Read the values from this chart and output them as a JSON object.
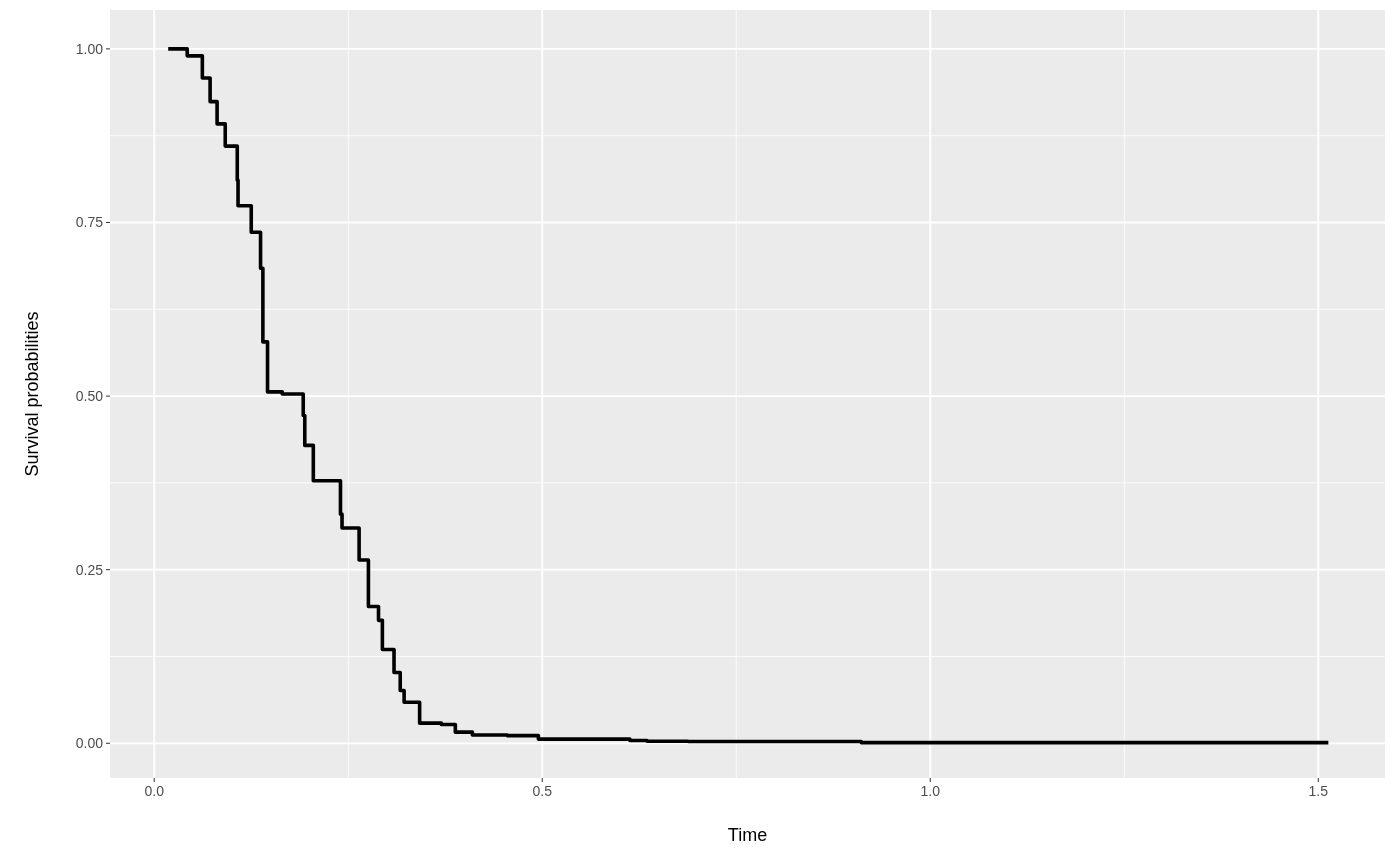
{
  "chart_data": {
    "type": "step",
    "xlabel": "Time",
    "ylabel": "Survival probabilities",
    "x": [
      0.018,
      0.0425,
      0.062,
      0.072,
      0.081,
      0.0915,
      0.107,
      0.108,
      0.125,
      0.137,
      0.14,
      0.146,
      0.165,
      0.192,
      0.194,
      0.205,
      0.24,
      0.242,
      0.264,
      0.276,
      0.289,
      0.294,
      0.309,
      0.317,
      0.322,
      0.342,
      0.37,
      0.388,
      0.41,
      0.455,
      0.495,
      0.613,
      0.635,
      0.688,
      0.911,
      1.513
    ],
    "series": [
      {
        "color": "#000000",
        "values": [
          1.0,
          0.99,
          0.958,
          0.924,
          0.892,
          0.86,
          0.811,
          0.774,
          0.736,
          0.684,
          0.578,
          0.506,
          0.503,
          0.472,
          0.429,
          0.378,
          0.33,
          0.31,
          0.264,
          0.197,
          0.177,
          0.135,
          0.102,
          0.076,
          0.059,
          0.029,
          0.027,
          0.016,
          0.012,
          0.011,
          0.006,
          0.004,
          0.003,
          0.0025,
          0.001,
          0.001
        ]
      }
    ],
    "xlim": [
      -0.057,
      1.586
    ],
    "ylim": [
      -0.05,
      1.056
    ],
    "xticks": [
      {
        "value": 0,
        "label": "0.0"
      },
      0.5,
      {
        "value": 1,
        "label": "1.0"
      },
      1.5
    ],
    "yticks": [
      {
        "value": 0,
        "label": "0.00"
      },
      0.25,
      {
        "value": 0.5,
        "label": "0.50"
      },
      0.75,
      {
        "value": 1,
        "label": "1.00"
      }
    ],
    "grid": true
  }
}
